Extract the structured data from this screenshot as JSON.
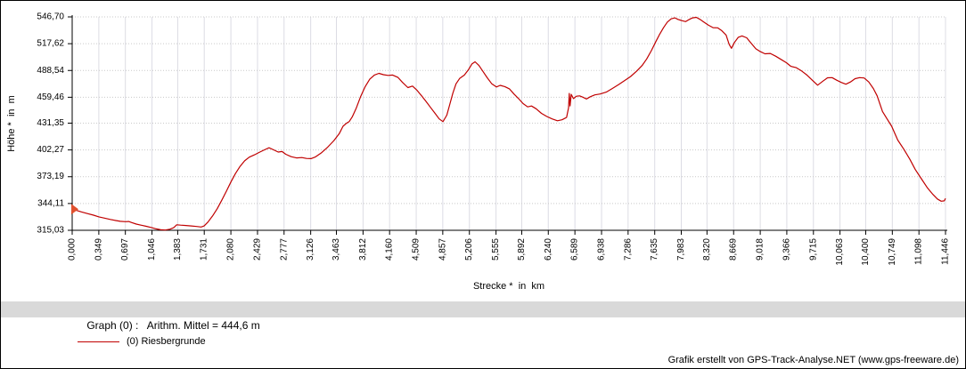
{
  "chart": {
    "y_axis_title": "Höhe *  in  m",
    "x_axis_title": "Strecke *  in  km"
  },
  "legend": {
    "header": "Graph (0) :   Arithm. Mittel = 444,6 m",
    "series_label": "(0) Riesbergrunde"
  },
  "footer": {
    "credit": "Grafik erstellt von GPS-Track-Analyse.NET (www.gps-freeware.de)"
  },
  "colors": {
    "series": "#c00000",
    "start_marker": "#e0512e",
    "grid_vertical": "#dcdce4",
    "grid_horizontal": "#c9c9c9",
    "axis": "#000000",
    "legend_bar_bg": "#d9d9d9"
  },
  "chart_data": {
    "type": "line",
    "title": "",
    "xlabel": "Strecke * in km",
    "ylabel": "Höhe * in m",
    "xlim": [
      0,
      11.446
    ],
    "ylim": [
      315.03,
      546.7
    ],
    "grid": true,
    "legend_position": "bottom",
    "y_ticks": [
      "546,70",
      "517,62",
      "488,54",
      "459,46",
      "431,35",
      "402,27",
      "373,19",
      "344,11",
      "315,03"
    ],
    "x_ticks": [
      "0,000",
      "0,349",
      "0,697",
      "1,046",
      "1,383",
      "1,731",
      "2,080",
      "2,429",
      "2,777",
      "3,126",
      "3,463",
      "3,812",
      "4,160",
      "4,509",
      "4,857",
      "5,206",
      "5,555",
      "5,892",
      "6,240",
      "6,589",
      "6,938",
      "7,286",
      "7,635",
      "7,983",
      "8,320",
      "8,669",
      "9,018",
      "9,366",
      "9,715",
      "10,063",
      "10,400",
      "10,749",
      "11,098",
      "11,446"
    ],
    "series": [
      {
        "name": "(0) Riesbergrunde",
        "color": "#c00000",
        "points": [
          [
            0.0,
            338.0
          ],
          [
            0.05,
            336.8
          ],
          [
            0.12,
            335.0
          ],
          [
            0.2,
            333.2
          ],
          [
            0.28,
            331.4
          ],
          [
            0.35,
            329.6
          ],
          [
            0.43,
            328.2
          ],
          [
            0.5,
            326.8
          ],
          [
            0.57,
            325.6
          ],
          [
            0.63,
            324.8
          ],
          [
            0.7,
            324.4
          ],
          [
            0.74,
            324.6
          ],
          [
            0.78,
            323.4
          ],
          [
            0.84,
            321.8
          ],
          [
            0.9,
            320.6
          ],
          [
            0.97,
            319.4
          ],
          [
            1.04,
            318.0
          ],
          [
            1.1,
            316.6
          ],
          [
            1.16,
            315.6
          ],
          [
            1.22,
            315.3
          ],
          [
            1.28,
            316.2
          ],
          [
            1.33,
            317.8
          ],
          [
            1.37,
            321.0
          ],
          [
            1.42,
            320.6
          ],
          [
            1.49,
            320.2
          ],
          [
            1.56,
            319.8
          ],
          [
            1.63,
            319.2
          ],
          [
            1.69,
            318.6
          ],
          [
            1.73,
            319.8
          ],
          [
            1.78,
            324.0
          ],
          [
            1.84,
            330.6
          ],
          [
            1.9,
            338.4
          ],
          [
            1.96,
            347.6
          ],
          [
            2.02,
            357.4
          ],
          [
            2.08,
            367.4
          ],
          [
            2.14,
            376.6
          ],
          [
            2.2,
            384.4
          ],
          [
            2.26,
            390.4
          ],
          [
            2.32,
            394.4
          ],
          [
            2.39,
            397.0
          ],
          [
            2.46,
            400.0
          ],
          [
            2.52,
            402.4
          ],
          [
            2.58,
            404.6
          ],
          [
            2.64,
            402.4
          ],
          [
            2.7,
            400.0
          ],
          [
            2.75,
            400.6
          ],
          [
            2.8,
            397.6
          ],
          [
            2.87,
            395.0
          ],
          [
            2.94,
            393.6
          ],
          [
            3.01,
            394.0
          ],
          [
            3.07,
            393.0
          ],
          [
            3.13,
            392.8
          ],
          [
            3.19,
            394.8
          ],
          [
            3.27,
            399.4
          ],
          [
            3.35,
            405.4
          ],
          [
            3.43,
            412.4
          ],
          [
            3.5,
            420.0
          ],
          [
            3.55,
            428.0
          ],
          [
            3.59,
            431.0
          ],
          [
            3.63,
            433.0
          ],
          [
            3.67,
            438.0
          ],
          [
            3.72,
            447.0
          ],
          [
            3.78,
            460.0
          ],
          [
            3.84,
            471.0
          ],
          [
            3.9,
            479.0
          ],
          [
            3.96,
            483.6
          ],
          [
            4.02,
            485.4
          ],
          [
            4.08,
            484.0
          ],
          [
            4.14,
            483.2
          ],
          [
            4.2,
            483.6
          ],
          [
            4.27,
            481.0
          ],
          [
            4.33,
            475.6
          ],
          [
            4.4,
            470.0
          ],
          [
            4.46,
            471.6
          ],
          [
            4.52,
            467.0
          ],
          [
            4.58,
            461.0
          ],
          [
            4.64,
            454.6
          ],
          [
            4.7,
            448.0
          ],
          [
            4.76,
            441.6
          ],
          [
            4.81,
            436.0
          ],
          [
            4.86,
            433.0
          ],
          [
            4.91,
            440.0
          ],
          [
            4.95,
            452.0
          ],
          [
            4.99,
            464.0
          ],
          [
            5.03,
            474.0
          ],
          [
            5.08,
            480.0
          ],
          [
            5.14,
            483.6
          ],
          [
            5.19,
            489.0
          ],
          [
            5.24,
            495.6
          ],
          [
            5.28,
            498.0
          ],
          [
            5.33,
            494.0
          ],
          [
            5.38,
            488.0
          ],
          [
            5.44,
            480.6
          ],
          [
            5.5,
            474.0
          ],
          [
            5.56,
            470.6
          ],
          [
            5.61,
            472.4
          ],
          [
            5.67,
            471.0
          ],
          [
            5.73,
            468.6
          ],
          [
            5.79,
            463.0
          ],
          [
            5.85,
            458.0
          ],
          [
            5.91,
            452.6
          ],
          [
            5.97,
            449.0
          ],
          [
            6.02,
            450.0
          ],
          [
            6.08,
            447.0
          ],
          [
            6.15,
            442.0
          ],
          [
            6.22,
            438.6
          ],
          [
            6.29,
            436.0
          ],
          [
            6.36,
            434.0
          ],
          [
            6.42,
            435.0
          ],
          [
            6.48,
            437.6
          ],
          [
            6.505,
            448.0
          ],
          [
            6.515,
            463.6
          ],
          [
            6.525,
            450.0
          ],
          [
            6.54,
            462.6
          ],
          [
            6.57,
            458.0
          ],
          [
            6.61,
            460.6
          ],
          [
            6.65,
            461.0
          ],
          [
            6.69,
            459.6
          ],
          [
            6.74,
            457.6
          ],
          [
            6.79,
            460.0
          ],
          [
            6.85,
            462.0
          ],
          [
            6.92,
            463.0
          ],
          [
            7.0,
            465.0
          ],
          [
            7.08,
            469.0
          ],
          [
            7.16,
            473.0
          ],
          [
            7.24,
            477.6
          ],
          [
            7.32,
            482.0
          ],
          [
            7.4,
            488.0
          ],
          [
            7.47,
            494.0
          ],
          [
            7.53,
            501.0
          ],
          [
            7.59,
            510.0
          ],
          [
            7.65,
            520.0
          ],
          [
            7.7,
            528.0
          ],
          [
            7.75,
            535.0
          ],
          [
            7.8,
            541.0
          ],
          [
            7.85,
            544.6
          ],
          [
            7.9,
            545.6
          ],
          [
            7.94,
            544.0
          ],
          [
            7.99,
            542.6
          ],
          [
            8.04,
            541.6
          ],
          [
            8.08,
            543.6
          ],
          [
            8.13,
            545.6
          ],
          [
            8.18,
            546.2
          ],
          [
            8.23,
            544.0
          ],
          [
            8.28,
            541.0
          ],
          [
            8.34,
            537.6
          ],
          [
            8.4,
            535.0
          ],
          [
            8.46,
            534.8
          ],
          [
            8.51,
            532.0
          ],
          [
            8.57,
            527.0
          ],
          [
            8.61,
            517.0
          ],
          [
            8.64,
            512.6
          ],
          [
            8.68,
            519.0
          ],
          [
            8.73,
            524.6
          ],
          [
            8.78,
            526.0
          ],
          [
            8.84,
            524.0
          ],
          [
            8.9,
            518.0
          ],
          [
            8.96,
            512.0
          ],
          [
            9.02,
            509.0
          ],
          [
            9.08,
            506.6
          ],
          [
            9.15,
            507.0
          ],
          [
            9.22,
            504.0
          ],
          [
            9.29,
            500.6
          ],
          [
            9.36,
            497.0
          ],
          [
            9.42,
            493.0
          ],
          [
            9.49,
            491.6
          ],
          [
            9.56,
            488.0
          ],
          [
            9.63,
            483.6
          ],
          [
            9.7,
            478.0
          ],
          [
            9.77,
            472.6
          ],
          [
            9.84,
            477.0
          ],
          [
            9.9,
            480.6
          ],
          [
            9.96,
            480.8
          ],
          [
            10.02,
            478.0
          ],
          [
            10.08,
            475.6
          ],
          [
            10.14,
            473.6
          ],
          [
            10.2,
            476.0
          ],
          [
            10.26,
            479.6
          ],
          [
            10.32,
            480.8
          ],
          [
            10.38,
            480.4
          ],
          [
            10.44,
            476.0
          ],
          [
            10.5,
            469.0
          ],
          [
            10.55,
            461.0
          ],
          [
            10.62,
            444.0
          ],
          [
            10.68,
            436.0
          ],
          [
            10.74,
            428.0
          ],
          [
            10.82,
            413.0
          ],
          [
            10.9,
            403.0
          ],
          [
            10.98,
            392.0
          ],
          [
            11.05,
            381.0
          ],
          [
            11.13,
            371.0
          ],
          [
            11.21,
            361.0
          ],
          [
            11.28,
            354.0
          ],
          [
            11.34,
            349.0
          ],
          [
            11.39,
            346.6
          ],
          [
            11.43,
            347.0
          ],
          [
            11.446,
            349.6
          ]
        ]
      }
    ]
  }
}
